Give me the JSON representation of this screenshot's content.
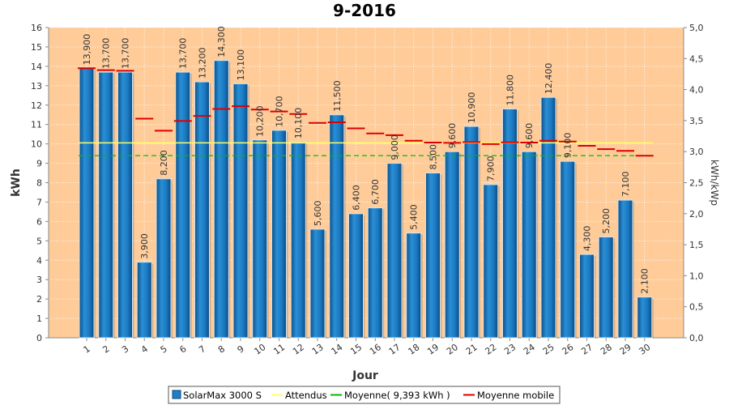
{
  "chart_data": {
    "type": "bar",
    "title": "9-2016",
    "xlabel": "Jour",
    "ylabel": "kWh",
    "y2label": "kWh/kWp",
    "ylim": [
      0,
      16
    ],
    "y2lim": [
      0,
      5
    ],
    "yticks": [
      "0",
      "1",
      "2",
      "3",
      "4",
      "5",
      "6",
      "7",
      "8",
      "9",
      "10",
      "11",
      "12",
      "13",
      "14",
      "15",
      "16"
    ],
    "y2ticks": [
      "0,0",
      "0,5",
      "1,0",
      "1,5",
      "2,0",
      "2,5",
      "3,0",
      "3,5",
      "4,0",
      "4,5",
      "5,0"
    ],
    "categories": [
      "1",
      "2",
      "3",
      "4",
      "5",
      "6",
      "7",
      "8",
      "9",
      "10",
      "11",
      "12",
      "13",
      "14",
      "15",
      "16",
      "17",
      "18",
      "19",
      "20",
      "21",
      "22",
      "23",
      "24",
      "25",
      "26",
      "27",
      "28",
      "29",
      "30"
    ],
    "series": [
      {
        "name": "SolarMax 3000 S",
        "kind": "bar",
        "color": "#1f7fc4",
        "values": [
          13.9,
          13.7,
          13.7,
          3.9,
          8.2,
          13.7,
          13.2,
          14.3,
          13.1,
          10.2,
          10.7,
          10.1,
          5.6,
          11.5,
          6.4,
          6.7,
          9.0,
          5.4,
          8.5,
          9.6,
          10.9,
          7.9,
          11.8,
          9.6,
          12.4,
          9.1,
          4.3,
          5.2,
          7.1,
          2.1
        ],
        "labels": [
          "13,900",
          "13,700",
          "13,700",
          "3,900",
          "8,200",
          "13,700",
          "13,200",
          "14,300",
          "13,100",
          "10,200",
          "10,700",
          "10,100",
          "5,600",
          "11,500",
          "6,400",
          "6,700",
          "9,000",
          "5,400",
          "8,500",
          "9,600",
          "10,900",
          "7,900",
          "11,800",
          "9,600",
          "12,400",
          "9,100",
          "4,300",
          "5,200",
          "7,100",
          "2,100"
        ]
      },
      {
        "name": "Attendus",
        "kind": "line",
        "color": "#ffff66",
        "value": 10.05
      },
      {
        "name": "Moyenne( 9,393 kWh )",
        "kind": "line",
        "color": "#00bb00",
        "value": 9.393
      },
      {
        "name": "Moyenne mobile",
        "kind": "step",
        "color": "#dd0000",
        "values": [
          13.9,
          13.8,
          13.77,
          11.3,
          10.68,
          11.18,
          11.44,
          11.8,
          11.94,
          11.77,
          11.67,
          11.54,
          11.08,
          11.11,
          10.8,
          10.54,
          10.45,
          10.16,
          10.07,
          10.05,
          10.09,
          9.99,
          10.08,
          10.07,
          10.16,
          10.12,
          9.9,
          9.73,
          9.64,
          9.39
        ]
      }
    ],
    "legend_position": "bottom",
    "plot_background": "#ffcc99",
    "grid": true
  }
}
